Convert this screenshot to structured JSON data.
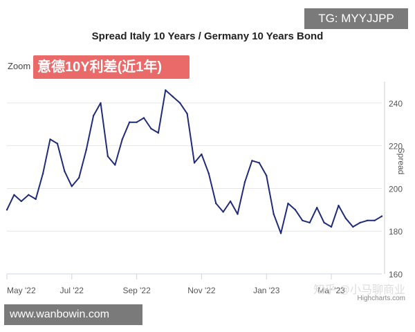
{
  "badge": {
    "text": "TG: MYYJJPP"
  },
  "zoom": {
    "label": "Zoom",
    "banner": "意德10Y利差(近1年)"
  },
  "watermarks": {
    "zhihu": "知乎 @小马聊商业",
    "site": "www.wanbowin.com"
  },
  "credits": "Highcharts.com",
  "colors": {
    "line": "#1f2a7a",
    "grid": "#e6e6e6",
    "banner": "#ea6a6a",
    "badge": "#7a7a7a"
  },
  "chart_data": {
    "type": "line",
    "title": "Spread Italy 10 Years / Germany 10 Years Bond",
    "xlabel": "",
    "ylabel": "Spread",
    "ylim": [
      160,
      250
    ],
    "yticks": [
      160,
      180,
      200,
      220,
      240
    ],
    "x_ticks": [
      {
        "label": "May '22",
        "index": 0
      },
      {
        "label": "Jul '22",
        "index": 9
      },
      {
        "label": "Sep '22",
        "index": 18
      },
      {
        "label": "Nov '22",
        "index": 27
      },
      {
        "label": "Jan '23",
        "index": 36
      },
      {
        "label": "Mar '23",
        "index": 45
      }
    ],
    "series": [
      {
        "name": "Spread",
        "values": [
          190,
          197,
          194,
          197,
          195,
          207,
          223,
          221,
          208,
          201,
          205,
          218,
          234,
          240,
          215,
          211,
          223,
          231,
          231,
          233,
          228,
          226,
          246,
          243,
          240,
          235,
          212,
          216,
          207,
          193,
          189,
          194,
          188,
          203,
          213,
          212,
          206,
          188,
          179,
          193,
          190,
          185,
          184,
          191,
          184,
          182,
          192,
          186,
          182,
          184,
          185,
          185,
          187
        ]
      }
    ]
  }
}
